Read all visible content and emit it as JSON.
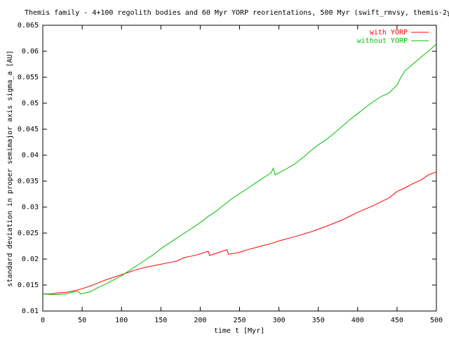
{
  "chart_data": {
    "type": "line",
    "title": "Themis family - 4+100 regolith bodies and 60 Myr YORP reorientations, 500 Myr (swift_rmvsy, themis-2y",
    "xlabel": "time t [Myr]",
    "ylabel": "standard deviation in proper semimajor axis sigma_a [AU]",
    "xlim": [
      0,
      500
    ],
    "ylim": [
      0.01,
      0.065
    ],
    "xticks": [
      0,
      50,
      100,
      150,
      200,
      250,
      300,
      350,
      400,
      450,
      500
    ],
    "yticks": [
      0.01,
      0.015,
      0.02,
      0.025,
      0.03,
      0.035,
      0.04,
      0.045,
      0.05,
      0.055,
      0.06,
      0.065
    ],
    "legend": "upper right",
    "series": [
      {
        "name": "with YORP",
        "color": "#ff0000",
        "x": [
          0,
          10,
          20,
          30,
          40,
          50,
          60,
          70,
          80,
          90,
          100,
          110,
          120,
          130,
          140,
          150,
          160,
          170,
          180,
          190,
          200,
          210,
          212,
          220,
          234,
          236,
          250,
          260,
          270,
          280,
          290,
          300,
          320,
          340,
          360,
          380,
          400,
          420,
          440,
          450,
          460,
          470,
          480,
          490,
          500
        ],
        "values": [
          0.0133,
          0.0133,
          0.0135,
          0.0136,
          0.0139,
          0.0143,
          0.0148,
          0.0154,
          0.016,
          0.0165,
          0.017,
          0.0175,
          0.018,
          0.0184,
          0.0187,
          0.019,
          0.0193,
          0.0196,
          0.0203,
          0.0206,
          0.021,
          0.0215,
          0.0207,
          0.0211,
          0.0218,
          0.0209,
          0.0213,
          0.0218,
          0.0222,
          0.0226,
          0.023,
          0.0235,
          0.0243,
          0.0252,
          0.0263,
          0.0275,
          0.029,
          0.0303,
          0.0318,
          0.033,
          0.0337,
          0.0345,
          0.0352,
          0.0362,
          0.0368
        ]
      },
      {
        "name": "without YORP",
        "color": "#00c000",
        "x": [
          0,
          10,
          20,
          30,
          40,
          45,
          48,
          60,
          70,
          80,
          90,
          100,
          110,
          120,
          130,
          140,
          150,
          160,
          170,
          180,
          190,
          200,
          210,
          220,
          230,
          240,
          250,
          260,
          270,
          280,
          290,
          293,
          295,
          300,
          310,
          320,
          330,
          340,
          350,
          360,
          370,
          380,
          390,
          400,
          410,
          420,
          430,
          440,
          450,
          455,
          460,
          470,
          480,
          490,
          500
        ],
        "values": [
          0.0133,
          0.0132,
          0.0132,
          0.0133,
          0.0137,
          0.0138,
          0.0133,
          0.0137,
          0.0145,
          0.0152,
          0.016,
          0.0168,
          0.0178,
          0.0188,
          0.0198,
          0.0208,
          0.022,
          0.023,
          0.024,
          0.025,
          0.026,
          0.027,
          0.0282,
          0.0292,
          0.0304,
          0.0316,
          0.0326,
          0.0336,
          0.0346,
          0.0356,
          0.0366,
          0.0375,
          0.0362,
          0.0366,
          0.0374,
          0.0383,
          0.0395,
          0.0408,
          0.042,
          0.043,
          0.0442,
          0.0455,
          0.0468,
          0.048,
          0.0492,
          0.0503,
          0.0513,
          0.052,
          0.0535,
          0.055,
          0.0562,
          0.0575,
          0.0588,
          0.06,
          0.0614
        ]
      }
    ]
  }
}
